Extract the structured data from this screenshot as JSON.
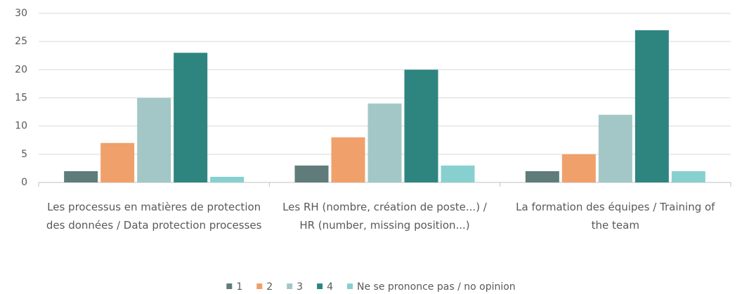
{
  "chart_data": {
    "type": "bar",
    "categories": [
      "Les processus en matières de protection des données / Data protection processes",
      "Les RH (nombre, création de poste...) / HR (number, missing position...)",
      "La formation des équipes / Training of the team"
    ],
    "series": [
      {
        "name": "1",
        "color": "#5f7c7a",
        "values": [
          2,
          3,
          2
        ]
      },
      {
        "name": "2",
        "color": "#f0a06a",
        "values": [
          7,
          8,
          5
        ]
      },
      {
        "name": "3",
        "color": "#a3c7c7",
        "values": [
          15,
          14,
          12
        ]
      },
      {
        "name": "4",
        "color": "#2e8580",
        "values": [
          23,
          20,
          27
        ]
      },
      {
        "name": "Ne se prononce pas / no opinion",
        "color": "#88d0d0",
        "values": [
          1,
          3,
          2
        ]
      }
    ],
    "ylim": [
      0,
      30
    ],
    "yticks": [
      0,
      5,
      10,
      15,
      20,
      25,
      30
    ],
    "grid": true
  }
}
